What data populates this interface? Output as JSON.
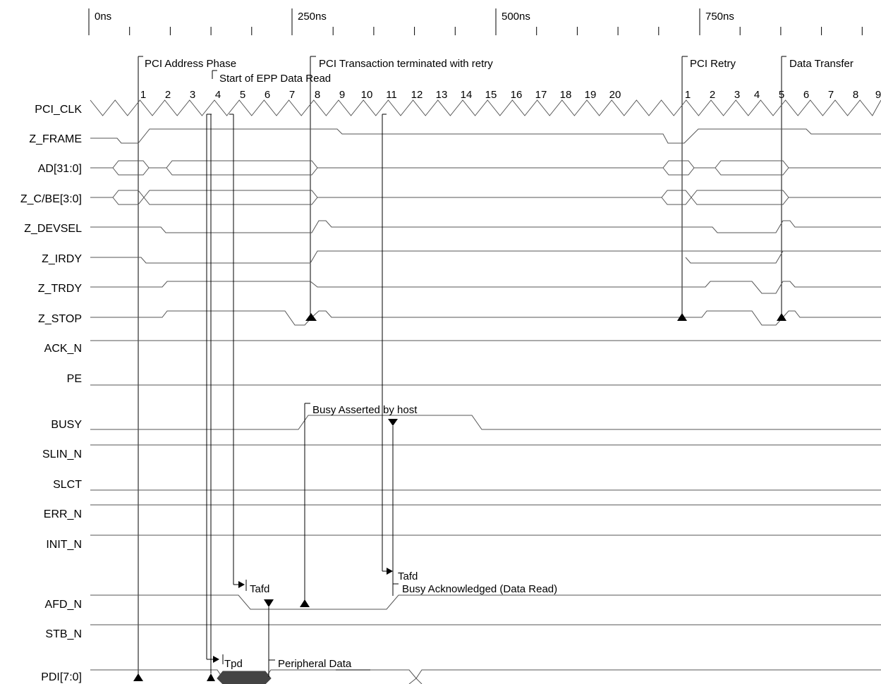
{
  "time_axis": {
    "ticks": [
      "0ns",
      "250ns",
      "500ns",
      "750ns"
    ]
  },
  "signals": [
    "PCI_CLK",
    "Z_FRAME",
    "AD[31:0]",
    "Z_C/BE[3:0]",
    "Z_DEVSEL",
    "Z_IRDY",
    "Z_TRDY",
    "Z_STOP",
    "ACK_N",
    "PE",
    "BUSY",
    "SLIN_N",
    "SLCT",
    "ERR_N",
    "INIT_N",
    "AFD_N",
    "STB_N",
    "PDI[7:0]"
  ],
  "clock_numbers": [
    "1",
    "2",
    "3",
    "4",
    "5",
    "6",
    "7",
    "8",
    "9",
    "10",
    "11",
    "12",
    "13",
    "14",
    "15",
    "16",
    "17",
    "18",
    "19",
    "20",
    "1",
    "2",
    "3",
    "4",
    "5",
    "6",
    "7",
    "8",
    "9"
  ],
  "annotations": {
    "pci_address_phase": "PCI Address Phase",
    "start_epp_read": "Start of EPP Data Read",
    "pci_retry_terminated": "PCI Transaction terminated with retry",
    "pci_retry": "PCI Retry",
    "data_transfer": "Data Transfer",
    "busy_asserted": "Busy Asserted by host",
    "busy_acknowledged": "Busy Acknowledged (Data Read)",
    "tafd_1": "Tafd",
    "tafd_2": "Tafd",
    "tpd": "Tpd",
    "peripheral_data": "Peripheral Data"
  }
}
